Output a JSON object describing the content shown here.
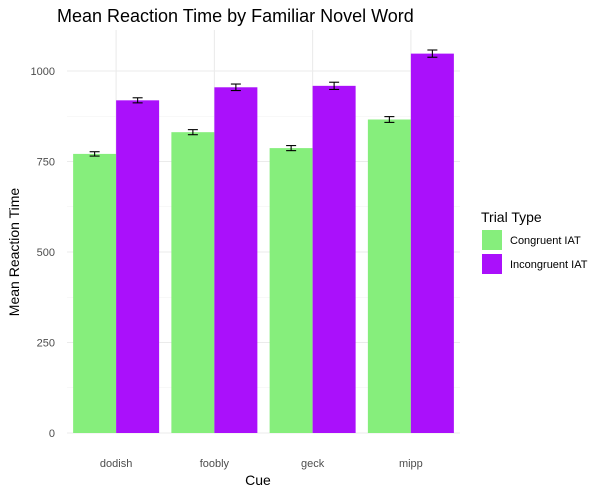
{
  "chart_data": {
    "type": "bar",
    "title": "Mean Reaction Time by Familiar Novel Word",
    "xlabel": "Cue",
    "ylabel": "Mean Reaction Time",
    "categories": [
      "dodish",
      "foobly",
      "geck",
      "mipp"
    ],
    "ylim": [
      0,
      1100
    ],
    "yticks": [
      0,
      250,
      500,
      750,
      1000
    ],
    "grid": true,
    "legend": {
      "title": "Trial Type",
      "position": "right"
    },
    "series": [
      {
        "name": "Congruent IAT",
        "color": "#86ee7c",
        "values": [
          771,
          831,
          787,
          866
        ],
        "error": [
          6,
          7,
          7,
          8
        ]
      },
      {
        "name": "Incongruent IAT",
        "color": "#aa10fb",
        "values": [
          919,
          955,
          959,
          1048
        ],
        "error": [
          7,
          9,
          10,
          10
        ]
      }
    ]
  }
}
